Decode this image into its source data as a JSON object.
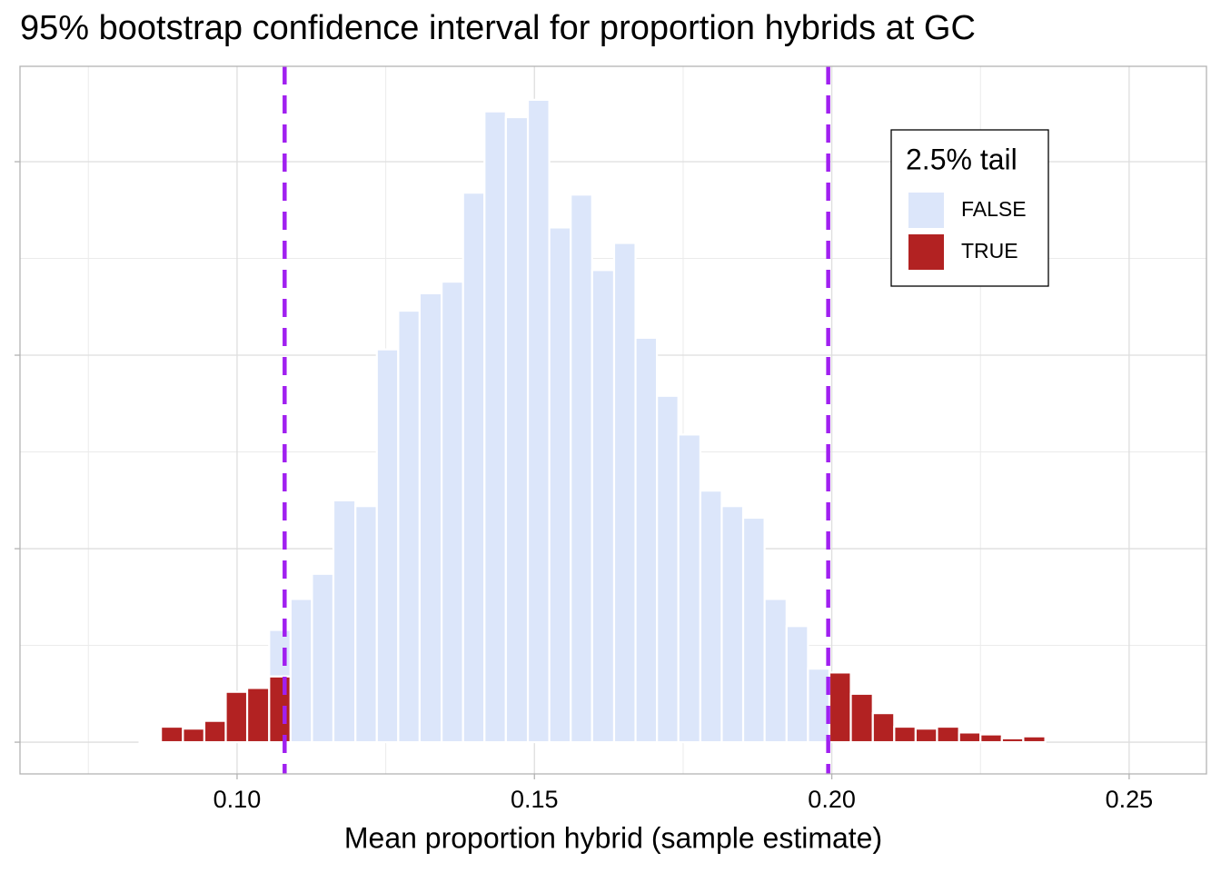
{
  "chart_data": {
    "type": "histogram",
    "title": "95% bootstrap confidence interval for proportion hybrids at GC",
    "x_label": "Mean proportion hybrid (sample estimate)",
    "bins": [
      0.0836,
      0.0872,
      0.0909,
      0.0945,
      0.0981,
      0.1017,
      0.1054,
      0.109,
      0.1126,
      0.1162,
      0.1199,
      0.1235,
      0.1271,
      0.1307,
      0.1344,
      0.138,
      0.1416,
      0.1452,
      0.1489,
      0.1525,
      0.1561,
      0.1597,
      0.1634,
      0.167,
      0.1706,
      0.1742,
      0.1779,
      0.1815,
      0.1851,
      0.1887,
      0.1924,
      0.196,
      0.1996,
      0.2032,
      0.2069,
      0.2105,
      0.2141,
      0.2177,
      0.2214,
      0.225,
      0.2286,
      0.2322,
      0.2359
    ],
    "series": [
      {
        "name": "TRUE",
        "color": "#b22222",
        "values": [
          1,
          8,
          7,
          11,
          26,
          28,
          34,
          0,
          0,
          0,
          0,
          0,
          0,
          0,
          0,
          0,
          0,
          0,
          0,
          0,
          0,
          0,
          0,
          0,
          0,
          0,
          0,
          0,
          0,
          0,
          0,
          0,
          36,
          25,
          15,
          8,
          7,
          8,
          5,
          4,
          2,
          3
        ]
      },
      {
        "name": "FALSE",
        "color": "#dce6fa",
        "values": [
          0,
          0,
          0,
          0,
          0,
          0,
          24,
          74,
          87,
          125,
          122,
          203,
          223,
          232,
          238,
          284,
          326,
          323,
          332,
          266,
          283,
          244,
          258,
          209,
          179,
          159,
          130,
          122,
          116,
          74,
          60,
          38,
          0,
          0,
          0,
          0,
          0,
          0,
          0,
          0,
          0,
          0
        ]
      }
    ],
    "legend_title": "2.5% tail",
    "legend_order": [
      "FALSE",
      "TRUE"
    ],
    "legend_position": "top-right",
    "vlines": [
      {
        "value": 0.108,
        "color": "#a020f0",
        "style": "dashed"
      },
      {
        "value": 0.1994,
        "color": "#a020f0",
        "style": "dashed"
      }
    ],
    "xlim": [
      0.0635,
      0.263
    ],
    "xticks": [
      {
        "value": 0.1,
        "label": "0.10"
      },
      {
        "value": 0.15,
        "label": "0.15"
      },
      {
        "value": 0.2,
        "label": "0.20"
      },
      {
        "value": 0.25,
        "label": "0.25"
      }
    ],
    "xminorticks": [
      0.075,
      0.125,
      0.175,
      0.225
    ],
    "ylim": [
      -16.4,
      349.3
    ],
    "yticks": [
      0,
      100,
      200,
      300
    ],
    "yminorticks": [
      50,
      150,
      250
    ],
    "grid": true
  }
}
